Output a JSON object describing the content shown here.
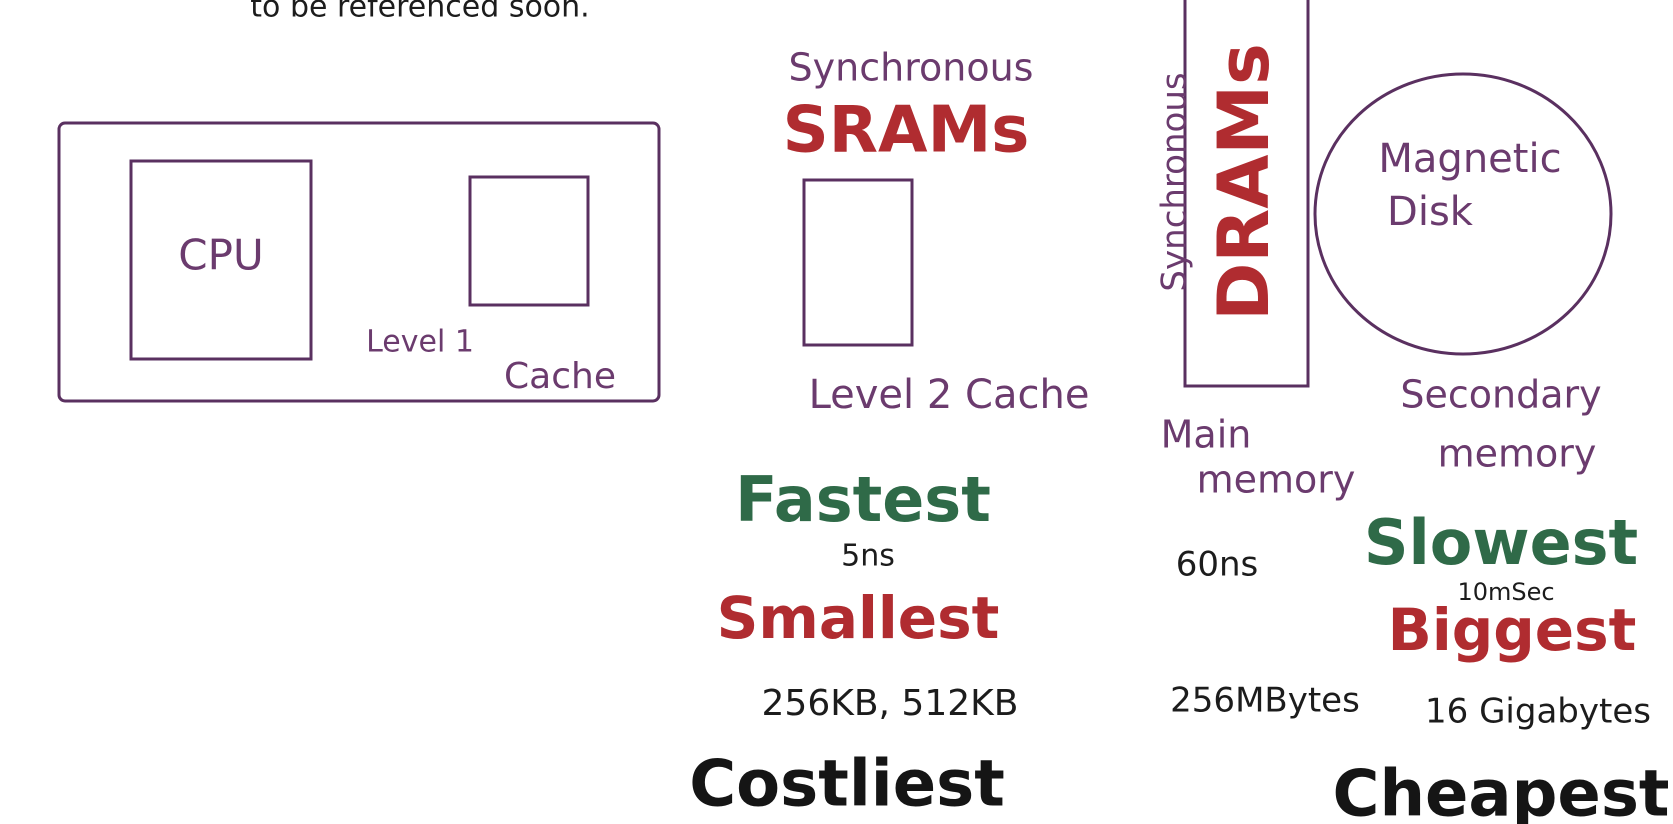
{
  "header": {
    "text": "to be referenced soon."
  },
  "cpu_chip": {
    "cpu": "CPU",
    "level1_cache": [
      "Level 1",
      "Cache"
    ]
  },
  "sram": {
    "kind": "Synchronous",
    "name": "SRAMs",
    "label": "Level 2 Cache",
    "speed_rank": "Fastest",
    "speed": "5ns",
    "size_rank": "Smallest",
    "size": "256KB, 512KB",
    "cost_rank": "Costliest"
  },
  "dram": {
    "kind": "Synchronous",
    "name": "DRAMs",
    "label": [
      "Main",
      "memory"
    ],
    "speed": "60ns",
    "size": "256MBytes"
  },
  "disk": {
    "name": [
      "Magnetic",
      "Disk"
    ],
    "label": [
      "Secondary",
      "memory"
    ],
    "speed_rank": "Slowest",
    "speed": "10mSec",
    "size_rank": "Biggest",
    "size": "16 Gigabytes",
    "cost_rank": "Cheapest"
  }
}
